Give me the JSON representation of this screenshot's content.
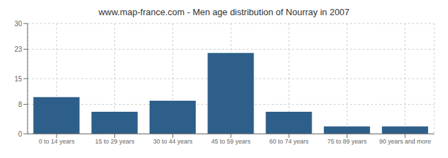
{
  "chart_data": {
    "type": "bar",
    "title": "www.map-france.com - Men age distribution of Nourray in 2007",
    "categories": [
      "0 to 14 years",
      "15 to 29 years",
      "30 to 44 years",
      "45 to 59 years",
      "60 to 74 years",
      "75 to 89 years",
      "90 years and more"
    ],
    "values": [
      10,
      6,
      9,
      22,
      6,
      2,
      2
    ],
    "color": "#2e5f8a",
    "ylim": [
      0,
      30
    ],
    "yticks": [
      0,
      8,
      15,
      23,
      30
    ],
    "grid": true
  }
}
